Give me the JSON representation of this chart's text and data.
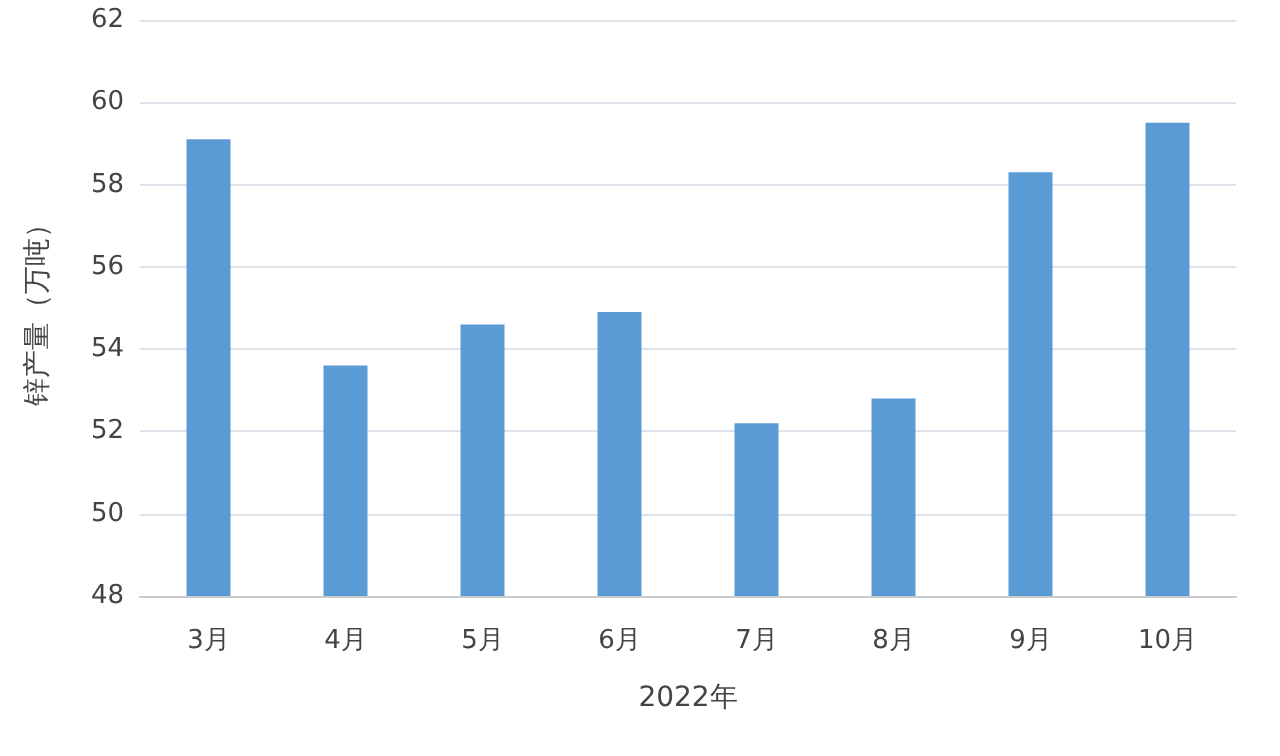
{
  "chart_data": {
    "type": "bar",
    "xlabel": "2022年",
    "ylabel": "锌产量（万吨）",
    "categories": [
      "3月",
      "4月",
      "5月",
      "6月",
      "7月",
      "8月",
      "9月",
      "10月"
    ],
    "values": [
      59.1,
      53.6,
      54.6,
      54.9,
      52.2,
      52.8,
      58.3,
      59.5
    ],
    "color": "#5b9bd5",
    "ylim": [
      48,
      62
    ],
    "yticks": [
      48,
      50,
      52,
      54,
      56,
      58,
      60,
      62
    ],
    "grid": "y"
  }
}
